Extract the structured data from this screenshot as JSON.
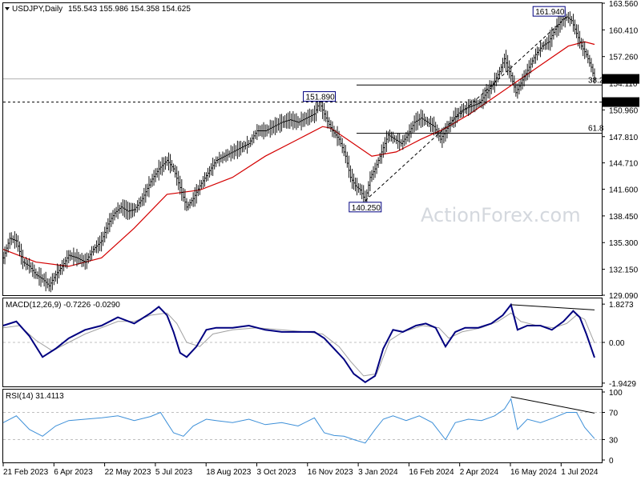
{
  "chart_data": [
    {
      "type": "line",
      "panel": "price",
      "title": "USDJPY,Daily",
      "ohlc_header": "155.543 155.986 154.358 154.625",
      "ylim": [
        129.09,
        163.56
      ],
      "y_ticks": [
        "163.560",
        "160.410",
        "157.260",
        "154.110",
        "150.960",
        "147.810",
        "144.710",
        "141.600",
        "138.450",
        "135.300",
        "132.150",
        "129.090"
      ],
      "x_ticks": [
        "21 Feb 2023",
        "6 Apr 2023",
        "22 May 2023",
        "5 Jul 2023",
        "18 Aug 2023",
        "3 Oct 2023",
        "16 Nov 2023",
        "3 Jan 2024",
        "16 Feb 2024",
        "2 Apr 2024",
        "16 May 2024",
        "1 Jul 2024"
      ],
      "price_series": [
        [
          0,
          133.5
        ],
        [
          4,
          135.8
        ],
        [
          8,
          135.5
        ],
        [
          12,
          133.0
        ],
        [
          16,
          132.5
        ],
        [
          20,
          131.5
        ],
        [
          24,
          131.0
        ],
        [
          28,
          130.2
        ],
        [
          32,
          131.5
        ],
        [
          36,
          132.5
        ],
        [
          40,
          133.8
        ],
        [
          45,
          133.5
        ],
        [
          50,
          133.0
        ],
        [
          55,
          134.5
        ],
        [
          60,
          135.5
        ],
        [
          64,
          137.5
        ],
        [
          68,
          138.8
        ],
        [
          72,
          139.5
        ],
        [
          76,
          139.0
        ],
        [
          80,
          139.2
        ],
        [
          85,
          140.5
        ],
        [
          90,
          142.5
        ],
        [
          95,
          144.0
        ],
        [
          100,
          145.0
        ],
        [
          104,
          144.0
        ],
        [
          108,
          141.8
        ],
        [
          112,
          139.5
        ],
        [
          116,
          140.5
        ],
        [
          120,
          142.0
        ],
        [
          125,
          143.5
        ],
        [
          130,
          145.0
        ],
        [
          135,
          145.5
        ],
        [
          140,
          146.0
        ],
        [
          145,
          146.5
        ],
        [
          150,
          147.0
        ],
        [
          155,
          148.5
        ],
        [
          160,
          148.5
        ],
        [
          165,
          149.0
        ],
        [
          170,
          149.5
        ],
        [
          175,
          149.8
        ],
        [
          180,
          149.5
        ],
        [
          185,
          150.0
        ],
        [
          190,
          150.5
        ],
        [
          193,
          151.9
        ],
        [
          197,
          150.0
        ],
        [
          201,
          148.5
        ],
        [
          205,
          147.5
        ],
        [
          209,
          145.5
        ],
        [
          212,
          143.0
        ],
        [
          215,
          142.0
        ],
        [
          218,
          141.5
        ],
        [
          221,
          140.25
        ],
        [
          224,
          143.0
        ],
        [
          227,
          144.0
        ],
        [
          231,
          146.0
        ],
        [
          235,
          148.0
        ],
        [
          239,
          147.5
        ],
        [
          243,
          147.0
        ],
        [
          247,
          148.0
        ],
        [
          251,
          149.5
        ],
        [
          255,
          150.0
        ],
        [
          259,
          149.5
        ],
        [
          263,
          149.0
        ],
        [
          267,
          147.5
        ],
        [
          271,
          148.8
        ],
        [
          275,
          150.0
        ],
        [
          279,
          150.8
        ],
        [
          283,
          151.2
        ],
        [
          287,
          151.5
        ],
        [
          291,
          151.8
        ],
        [
          295,
          153.0
        ],
        [
          299,
          154.0
        ],
        [
          303,
          155.5
        ],
        [
          306,
          157.0
        ],
        [
          310,
          155.0
        ],
        [
          313,
          153.0
        ],
        [
          317,
          154.5
        ],
        [
          321,
          156.0
        ],
        [
          325,
          157.5
        ],
        [
          329,
          158.5
        ],
        [
          333,
          159.0
        ],
        [
          337,
          160.5
        ],
        [
          341,
          161.6
        ],
        [
          344,
          161.94
        ],
        [
          347,
          161.5
        ],
        [
          350,
          160.0
        ],
        [
          353,
          158.5
        ],
        [
          356,
          157.5
        ],
        [
          359,
          156.0
        ],
        [
          361,
          154.625
        ]
      ],
      "sma_label": "",
      "sma_series": [
        [
          0,
          134.5
        ],
        [
          20,
          133.0
        ],
        [
          40,
          132.5
        ],
        [
          60,
          133.5
        ],
        [
          80,
          137.0
        ],
        [
          100,
          141.0
        ],
        [
          120,
          141.5
        ],
        [
          140,
          143.0
        ],
        [
          160,
          145.5
        ],
        [
          180,
          147.5
        ],
        [
          195,
          149.0
        ],
        [
          200,
          148.8
        ],
        [
          210,
          147.5
        ],
        [
          225,
          145.5
        ],
        [
          240,
          146.0
        ],
        [
          255,
          147.5
        ],
        [
          270,
          148.8
        ],
        [
          285,
          150.5
        ],
        [
          300,
          152.5
        ],
        [
          315,
          154.5
        ],
        [
          330,
          156.5
        ],
        [
          345,
          158.5
        ],
        [
          355,
          159.0
        ],
        [
          361,
          158.7
        ]
      ],
      "horizontal_levels": [
        {
          "value": 154.625,
          "label": "154.625",
          "style": "current"
        },
        {
          "value": 151.89,
          "label": "151.890",
          "style": "dotted"
        },
        {
          "value": 153.9,
          "label": "38.2",
          "style": "fib"
        },
        {
          "value": 148.2,
          "label": "61.8",
          "style": "fib"
        }
      ],
      "annotations": [
        {
          "text": "161.940",
          "x": 344,
          "y": 161.94
        },
        {
          "text": "151.890",
          "x": 193,
          "y": 151.89
        },
        {
          "text": "140.250",
          "x": 221,
          "y": 140.25
        }
      ],
      "trendlines": [
        {
          "from": [
            221,
            140.25
          ],
          "to": [
            344,
            161.94
          ],
          "style": "dashed"
        }
      ],
      "watermark": "ActionForex.com"
    },
    {
      "type": "line",
      "panel": "macd",
      "title": "MACD(12,26,9) -0.7226 -0.0290",
      "ylim": [
        -1.9429,
        1.8273
      ],
      "y_ticks": [
        "1.8273",
        "0.00",
        "-1.9429"
      ],
      "macd_series": [
        [
          0,
          0.8
        ],
        [
          8,
          1.0
        ],
        [
          16,
          0.3
        ],
        [
          24,
          -0.7
        ],
        [
          32,
          -0.3
        ],
        [
          40,
          0.2
        ],
        [
          50,
          0.6
        ],
        [
          60,
          0.8
        ],
        [
          70,
          1.2
        ],
        [
          80,
          0.9
        ],
        [
          90,
          1.4
        ],
        [
          95,
          1.7
        ],
        [
          100,
          1.3
        ],
        [
          104,
          0.5
        ],
        [
          108,
          -0.5
        ],
        [
          112,
          -0.7
        ],
        [
          118,
          -0.2
        ],
        [
          124,
          0.6
        ],
        [
          130,
          0.7
        ],
        [
          140,
          0.7
        ],
        [
          150,
          0.8
        ],
        [
          160,
          0.6
        ],
        [
          170,
          0.5
        ],
        [
          180,
          0.5
        ],
        [
          190,
          0.5
        ],
        [
          196,
          0.2
        ],
        [
          202,
          -0.3
        ],
        [
          208,
          -0.8
        ],
        [
          214,
          -1.5
        ],
        [
          221,
          -1.9
        ],
        [
          227,
          -1.6
        ],
        [
          232,
          -0.3
        ],
        [
          238,
          0.6
        ],
        [
          244,
          0.5
        ],
        [
          252,
          0.8
        ],
        [
          258,
          0.9
        ],
        [
          264,
          0.7
        ],
        [
          270,
          -0.2
        ],
        [
          276,
          0.5
        ],
        [
          282,
          0.7
        ],
        [
          290,
          0.7
        ],
        [
          298,
          0.9
        ],
        [
          305,
          1.3
        ],
        [
          310,
          1.8
        ],
        [
          314,
          0.6
        ],
        [
          320,
          0.8
        ],
        [
          328,
          0.8
        ],
        [
          335,
          0.6
        ],
        [
          342,
          1.0
        ],
        [
          348,
          1.5
        ],
        [
          352,
          1.2
        ],
        [
          356,
          0.4
        ],
        [
          361,
          -0.72
        ]
      ],
      "signal_series": [
        [
          0,
          0.7
        ],
        [
          10,
          0.8
        ],
        [
          20,
          0.1
        ],
        [
          30,
          -0.4
        ],
        [
          40,
          0.0
        ],
        [
          50,
          0.4
        ],
        [
          60,
          0.7
        ],
        [
          70,
          1.0
        ],
        [
          80,
          1.0
        ],
        [
          90,
          1.3
        ],
        [
          100,
          1.4
        ],
        [
          106,
          0.9
        ],
        [
          112,
          0.0
        ],
        [
          120,
          -0.2
        ],
        [
          128,
          0.4
        ],
        [
          140,
          0.6
        ],
        [
          155,
          0.7
        ],
        [
          170,
          0.6
        ],
        [
          185,
          0.5
        ],
        [
          195,
          0.4
        ],
        [
          205,
          -0.2
        ],
        [
          212,
          -0.9
        ],
        [
          220,
          -1.6
        ],
        [
          228,
          -1.5
        ],
        [
          236,
          0.1
        ],
        [
          244,
          0.5
        ],
        [
          256,
          0.8
        ],
        [
          266,
          0.7
        ],
        [
          272,
          0.2
        ],
        [
          280,
          0.5
        ],
        [
          292,
          0.7
        ],
        [
          302,
          1.0
        ],
        [
          310,
          1.4
        ],
        [
          316,
          1.0
        ],
        [
          326,
          0.8
        ],
        [
          336,
          0.7
        ],
        [
          344,
          0.9
        ],
        [
          350,
          1.3
        ],
        [
          355,
          1.1
        ],
        [
          361,
          -0.03
        ]
      ],
      "trendlines": [
        {
          "from": [
            310,
            1.8
          ],
          "to": [
            361,
            1.55
          ],
          "style": "solid"
        }
      ]
    },
    {
      "type": "line",
      "panel": "rsi",
      "title": "RSI(14) 31.4113",
      "ylim": [
        0,
        100
      ],
      "y_ticks": [
        "100",
        "70",
        "30",
        "0"
      ],
      "levels": [
        70,
        30
      ],
      "rsi_series": [
        [
          0,
          55
        ],
        [
          8,
          65
        ],
        [
          16,
          45
        ],
        [
          24,
          35
        ],
        [
          32,
          50
        ],
        [
          40,
          58
        ],
        [
          50,
          60
        ],
        [
          60,
          62
        ],
        [
          70,
          65
        ],
        [
          80,
          58
        ],
        [
          90,
          64
        ],
        [
          96,
          70
        ],
        [
          100,
          55
        ],
        [
          104,
          40
        ],
        [
          110,
          35
        ],
        [
          116,
          50
        ],
        [
          124,
          60
        ],
        [
          130,
          58
        ],
        [
          140,
          55
        ],
        [
          150,
          60
        ],
        [
          160,
          52
        ],
        [
          170,
          55
        ],
        [
          180,
          50
        ],
        [
          190,
          62
        ],
        [
          196,
          40
        ],
        [
          202,
          36
        ],
        [
          208,
          35
        ],
        [
          214,
          30
        ],
        [
          221,
          25
        ],
        [
          227,
          45
        ],
        [
          232,
          60
        ],
        [
          238,
          65
        ],
        [
          246,
          58
        ],
        [
          254,
          65
        ],
        [
          262,
          55
        ],
        [
          270,
          30
        ],
        [
          276,
          55
        ],
        [
          284,
          60
        ],
        [
          292,
          58
        ],
        [
          300,
          65
        ],
        [
          306,
          75
        ],
        [
          310,
          90
        ],
        [
          314,
          45
        ],
        [
          320,
          60
        ],
        [
          328,
          55
        ],
        [
          336,
          62
        ],
        [
          344,
          70
        ],
        [
          350,
          70
        ],
        [
          355,
          48
        ],
        [
          361,
          31.4
        ]
      ],
      "trendlines": [
        {
          "from": [
            310,
            93
          ],
          "to": [
            361,
            69
          ],
          "style": "solid"
        }
      ]
    }
  ],
  "colors": {
    "price": "#000000",
    "sma": "#d40000",
    "macd": "#000080",
    "signal": "#a0a0a0",
    "rsi": "#3c8fd8",
    "grid": "#c0c0c0",
    "current_label_bg": "#000000",
    "level_label_bg": "#000000",
    "annotation_border": "#000080"
  }
}
